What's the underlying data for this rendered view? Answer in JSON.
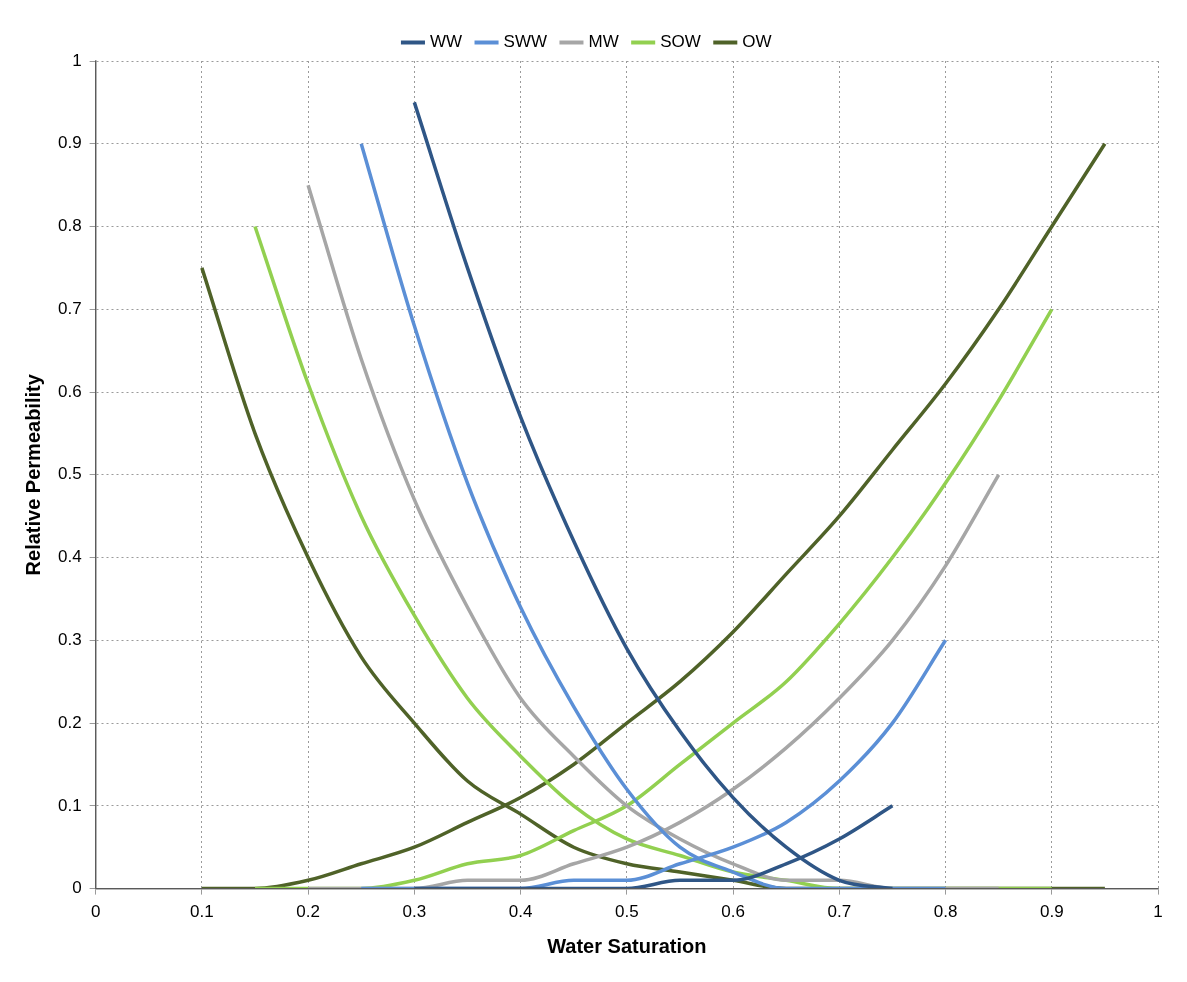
{
  "chart_data": {
    "type": "line",
    "xlabel": "Water Saturation",
    "ylabel": "Relative Permeability",
    "xlim": [
      0,
      1
    ],
    "xticks": [
      0,
      0.1,
      0.2,
      0.3,
      0.4,
      0.5,
      0.6,
      0.7,
      0.8,
      0.9,
      1
    ],
    "ylim": [
      0,
      1
    ],
    "yticks": [
      0,
      0.1,
      0.2,
      0.3,
      0.4,
      0.5,
      0.6,
      0.7,
      0.8,
      0.9,
      1
    ],
    "grid": true,
    "legend": "top",
    "marker": "none",
    "line_style": "solid",
    "series": [
      {
        "name": "WW",
        "color": "#2f5686",
        "x": [
          0.3,
          0.35,
          0.4,
          0.45,
          0.5,
          0.55,
          0.6,
          0.65,
          0.7,
          0.75
        ],
        "values": [
          0.95,
          0.75,
          0.57,
          0.42,
          0.29,
          0.19,
          0.11,
          0.05,
          0.01,
          0
        ]
      },
      {
        "color": "#2f5686",
        "x": [
          0.3,
          0.35,
          0.4,
          0.45,
          0.5,
          0.55,
          0.6,
          0.65,
          0.7,
          0.75
        ],
        "values": [
          0,
          0,
          0,
          0,
          0,
          0.01,
          0.01,
          0.03,
          0.06,
          0.1
        ]
      },
      {
        "name": "SWW",
        "color": "#5b8fd6",
        "x": [
          0.25,
          0.3,
          0.35,
          0.4,
          0.45,
          0.5,
          0.55,
          0.6,
          0.65,
          0.7,
          0.75,
          0.8
        ],
        "values": [
          0.9,
          0.68,
          0.49,
          0.34,
          0.22,
          0.12,
          0.05,
          0.02,
          0,
          0,
          0,
          0
        ]
      },
      {
        "color": "#5b8fd6",
        "x": [
          0.25,
          0.3,
          0.35,
          0.4,
          0.45,
          0.5,
          0.55,
          0.6,
          0.65,
          0.7,
          0.75,
          0.8
        ],
        "values": [
          0,
          0,
          0,
          0,
          0.01,
          0.01,
          0.03,
          0.05,
          0.08,
          0.13,
          0.2,
          0.3
        ]
      },
      {
        "name": "MW",
        "color": "#a6a6a6",
        "x": [
          0.2,
          0.25,
          0.3,
          0.35,
          0.4,
          0.45,
          0.5,
          0.55,
          0.6,
          0.65,
          0.7,
          0.75,
          0.8,
          0.85
        ],
        "values": [
          0.85,
          0.64,
          0.47,
          0.34,
          0.23,
          0.16,
          0.1,
          0.06,
          0.03,
          0.01,
          0.01,
          0,
          0,
          0
        ]
      },
      {
        "color": "#a6a6a6",
        "x": [
          0.2,
          0.25,
          0.3,
          0.35,
          0.4,
          0.45,
          0.5,
          0.55,
          0.6,
          0.65,
          0.7,
          0.75,
          0.8,
          0.85
        ],
        "values": [
          0,
          0,
          0,
          0.01,
          0.01,
          0.03,
          0.05,
          0.08,
          0.12,
          0.17,
          0.23,
          0.3,
          0.39,
          0.5
        ]
      },
      {
        "name": "SOW",
        "color": "#92d050",
        "x": [
          0.15,
          0.2,
          0.25,
          0.3,
          0.35,
          0.4,
          0.45,
          0.5,
          0.55,
          0.6,
          0.65,
          0.7,
          0.75,
          0.8,
          0.85,
          0.9
        ],
        "values": [
          0.8,
          0.61,
          0.45,
          0.33,
          0.23,
          0.16,
          0.1,
          0.06,
          0.04,
          0.02,
          0.01,
          0,
          0,
          0,
          0,
          0
        ]
      },
      {
        "color": "#92d050",
        "x": [
          0.15,
          0.2,
          0.25,
          0.3,
          0.35,
          0.4,
          0.45,
          0.5,
          0.55,
          0.6,
          0.65,
          0.7,
          0.75,
          0.8,
          0.85,
          0.9
        ],
        "values": [
          0,
          0,
          0,
          0.01,
          0.03,
          0.04,
          0.07,
          0.1,
          0.15,
          0.2,
          0.25,
          0.32,
          0.4,
          0.49,
          0.59,
          0.7
        ]
      },
      {
        "name": "OW",
        "color": "#4f6228",
        "x": [
          0.1,
          0.15,
          0.2,
          0.25,
          0.3,
          0.35,
          0.4,
          0.45,
          0.5,
          0.55,
          0.6,
          0.65,
          0.7,
          0.75,
          0.8,
          0.85,
          0.9,
          0.95
        ],
        "values": [
          0.75,
          0.55,
          0.4,
          0.28,
          0.2,
          0.13,
          0.09,
          0.05,
          0.03,
          0.02,
          0.01,
          0,
          0,
          0,
          0,
          0,
          0,
          0
        ]
      },
      {
        "color": "#4f6228",
        "x": [
          0.1,
          0.15,
          0.2,
          0.25,
          0.3,
          0.35,
          0.4,
          0.45,
          0.5,
          0.55,
          0.6,
          0.65,
          0.7,
          0.75,
          0.8,
          0.85,
          0.9,
          0.95
        ],
        "values": [
          0,
          0,
          0.01,
          0.03,
          0.05,
          0.08,
          0.11,
          0.15,
          0.2,
          0.25,
          0.31,
          0.38,
          0.45,
          0.53,
          0.61,
          0.7,
          0.8,
          0.9
        ]
      }
    ]
  }
}
